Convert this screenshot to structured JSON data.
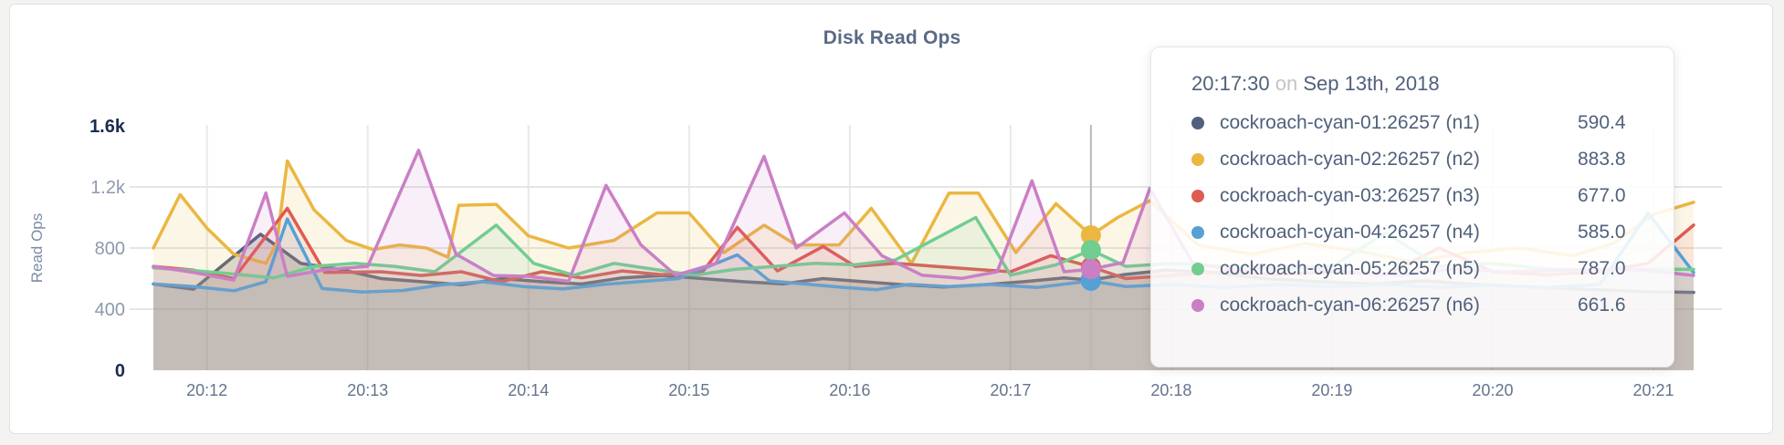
{
  "card": {
    "title": "Disk Read Ops"
  },
  "tooltip": {
    "time": "20:17:30",
    "connector": "on",
    "date": "Sep 13th, 2018",
    "rows": [
      {
        "name": "cockroach-cyan-01:26257 (n1)",
        "value": "590.4",
        "color": "#51607e"
      },
      {
        "name": "cockroach-cyan-02:26257 (n2)",
        "value": "883.8",
        "color": "#ebb742"
      },
      {
        "name": "cockroach-cyan-03:26257 (n3)",
        "value": "677.0",
        "color": "#de5b52"
      },
      {
        "name": "cockroach-cyan-04:26257 (n4)",
        "value": "585.0",
        "color": "#56a0d6"
      },
      {
        "name": "cockroach-cyan-05:26257 (n5)",
        "value": "787.0",
        "color": "#71cd90"
      },
      {
        "name": "cockroach-cyan-06:26257 (n6)",
        "value": "661.6",
        "color": "#ca7fc5"
      }
    ]
  },
  "chart_data": {
    "type": "area",
    "title": "Disk Read Ops",
    "ylabel": "Read Ops",
    "ylim": [
      0,
      1600
    ],
    "grid": true,
    "time_origin": "20:11:40",
    "t_domain_seconds": [
      0,
      575
    ],
    "x_ticks": [
      {
        "label": "20:12",
        "t": 20
      },
      {
        "label": "20:13",
        "t": 80
      },
      {
        "label": "20:14",
        "t": 140
      },
      {
        "label": "20:15",
        "t": 200
      },
      {
        "label": "20:16",
        "t": 260
      },
      {
        "label": "20:17",
        "t": 320
      },
      {
        "label": "20:18",
        "t": 380
      },
      {
        "label": "20:19",
        "t": 440
      },
      {
        "label": "20:20",
        "t": 500
      },
      {
        "label": "20:21",
        "t": 560
      }
    ],
    "y_ticks": [
      {
        "label": "1.6k",
        "value": 1600,
        "emphasis": true,
        "gridline": false
      },
      {
        "label": "1.2k",
        "value": 1200,
        "emphasis": false,
        "gridline": true
      },
      {
        "label": "800",
        "value": 800,
        "emphasis": false,
        "gridline": true
      },
      {
        "label": "400",
        "value": 400,
        "emphasis": false,
        "gridline": true
      },
      {
        "label": "0",
        "value": 0,
        "emphasis": true,
        "gridline": false
      }
    ],
    "hover": {
      "t": 350,
      "time": "20:17:30",
      "values": [
        590.4,
        883.8,
        677.0,
        585.0,
        787.0,
        661.6
      ]
    },
    "series": [
      {
        "name": "cockroach-cyan-01:26257 (n1)",
        "color": "#51607e",
        "fill": "rgba(118,115,106,0.26)",
        "points": [
          [
            0,
            565
          ],
          [
            15,
            530
          ],
          [
            40,
            890
          ],
          [
            55,
            700
          ],
          [
            70,
            660
          ],
          [
            85,
            600
          ],
          [
            100,
            580
          ],
          [
            115,
            560
          ],
          [
            130,
            600
          ],
          [
            145,
            580
          ],
          [
            160,
            565
          ],
          [
            175,
            605
          ],
          [
            190,
            620
          ],
          [
            205,
            600
          ],
          [
            220,
            580
          ],
          [
            235,
            565
          ],
          [
            250,
            600
          ],
          [
            265,
            580
          ],
          [
            280,
            560
          ],
          [
            295,
            545
          ],
          [
            310,
            560
          ],
          [
            325,
            580
          ],
          [
            340,
            605
          ],
          [
            350,
            590.4
          ],
          [
            362,
            625
          ],
          [
            378,
            655
          ],
          [
            395,
            640
          ],
          [
            415,
            600
          ],
          [
            435,
            580
          ],
          [
            455,
            565
          ],
          [
            475,
            585
          ],
          [
            495,
            560
          ],
          [
            515,
            545
          ],
          [
            535,
            530
          ],
          [
            555,
            515
          ],
          [
            575,
            510
          ]
        ]
      },
      {
        "name": "cockroach-cyan-02:26257 (n2)",
        "color": "#ebb742",
        "fill": "rgba(235,183,66,0.13)",
        "points": [
          [
            0,
            800
          ],
          [
            10,
            1150
          ],
          [
            20,
            930
          ],
          [
            30,
            760
          ],
          [
            42,
            700
          ],
          [
            46,
            830
          ],
          [
            50,
            1370
          ],
          [
            60,
            1050
          ],
          [
            72,
            850
          ],
          [
            82,
            790
          ],
          [
            92,
            820
          ],
          [
            102,
            800
          ],
          [
            110,
            740
          ],
          [
            114,
            1080
          ],
          [
            128,
            1086
          ],
          [
            140,
            880
          ],
          [
            155,
            800
          ],
          [
            172,
            850
          ],
          [
            188,
            1030
          ],
          [
            200,
            1030
          ],
          [
            213,
            770
          ],
          [
            228,
            950
          ],
          [
            240,
            820
          ],
          [
            256,
            820
          ],
          [
            268,
            1060
          ],
          [
            283,
            700
          ],
          [
            297,
            1160
          ],
          [
            308,
            1160
          ],
          [
            322,
            770
          ],
          [
            337,
            1090
          ],
          [
            350,
            883.8
          ],
          [
            360,
            1000
          ],
          [
            372,
            1110
          ],
          [
            390,
            820
          ],
          [
            410,
            760
          ],
          [
            430,
            830
          ],
          [
            450,
            780
          ],
          [
            470,
            710
          ],
          [
            490,
            770
          ],
          [
            510,
            800
          ],
          [
            530,
            750
          ],
          [
            545,
            830
          ],
          [
            560,
            1020
          ],
          [
            575,
            1100
          ]
        ]
      },
      {
        "name": "cockroach-cyan-03:26257 (n3)",
        "color": "#de5b52",
        "fill": "rgba(222,91,82,0.10)",
        "points": [
          [
            0,
            680
          ],
          [
            15,
            655
          ],
          [
            30,
            600
          ],
          [
            50,
            1060
          ],
          [
            64,
            640
          ],
          [
            85,
            645
          ],
          [
            100,
            620
          ],
          [
            115,
            645
          ],
          [
            130,
            580
          ],
          [
            145,
            645
          ],
          [
            160,
            605
          ],
          [
            175,
            650
          ],
          [
            190,
            625
          ],
          [
            205,
            645
          ],
          [
            218,
            935
          ],
          [
            233,
            650
          ],
          [
            250,
            810
          ],
          [
            262,
            680
          ],
          [
            277,
            700
          ],
          [
            292,
            680
          ],
          [
            307,
            660
          ],
          [
            320,
            645
          ],
          [
            335,
            750
          ],
          [
            350,
            677
          ],
          [
            363,
            600
          ],
          [
            380,
            620
          ],
          [
            400,
            645
          ],
          [
            420,
            625
          ],
          [
            440,
            645
          ],
          [
            460,
            625
          ],
          [
            480,
            800
          ],
          [
            500,
            645
          ],
          [
            520,
            625
          ],
          [
            540,
            645
          ],
          [
            558,
            700
          ],
          [
            575,
            950
          ]
        ]
      },
      {
        "name": "cockroach-cyan-04:26257 (n4)",
        "color": "#56a0d6",
        "fill": "rgba(86,160,214,0.10)",
        "points": [
          [
            0,
            565
          ],
          [
            15,
            548
          ],
          [
            30,
            520
          ],
          [
            42,
            580
          ],
          [
            50,
            990
          ],
          [
            63,
            535
          ],
          [
            78,
            512
          ],
          [
            93,
            522
          ],
          [
            108,
            560
          ],
          [
            123,
            580
          ],
          [
            138,
            548
          ],
          [
            153,
            532
          ],
          [
            168,
            562
          ],
          [
            183,
            582
          ],
          [
            196,
            600
          ],
          [
            218,
            755
          ],
          [
            230,
            585
          ],
          [
            245,
            562
          ],
          [
            258,
            542
          ],
          [
            270,
            527
          ],
          [
            282,
            562
          ],
          [
            297,
            548
          ],
          [
            312,
            562
          ],
          [
            330,
            542
          ],
          [
            350,
            585
          ],
          [
            363,
            548
          ],
          [
            380,
            562
          ],
          [
            400,
            542
          ],
          [
            420,
            562
          ],
          [
            440,
            548
          ],
          [
            460,
            562
          ],
          [
            480,
            542
          ],
          [
            500,
            558
          ],
          [
            520,
            542
          ],
          [
            540,
            562
          ],
          [
            558,
            1030
          ],
          [
            575,
            640
          ]
        ]
      },
      {
        "name": "cockroach-cyan-05:26257 (n5)",
        "color": "#71cd90",
        "fill": "rgba(113,205,144,0.12)",
        "points": [
          [
            0,
            670
          ],
          [
            15,
            652
          ],
          [
            30,
            630
          ],
          [
            45,
            605
          ],
          [
            60,
            680
          ],
          [
            75,
            700
          ],
          [
            90,
            680
          ],
          [
            105,
            645
          ],
          [
            128,
            950
          ],
          [
            142,
            700
          ],
          [
            157,
            622
          ],
          [
            172,
            700
          ],
          [
            187,
            660
          ],
          [
            202,
            622
          ],
          [
            217,
            660
          ],
          [
            232,
            680
          ],
          [
            247,
            700
          ],
          [
            262,
            690
          ],
          [
            277,
            722
          ],
          [
            307,
            1000
          ],
          [
            320,
            622
          ],
          [
            337,
            690
          ],
          [
            350,
            787
          ],
          [
            363,
            680
          ],
          [
            380,
            700
          ],
          [
            400,
            680
          ],
          [
            420,
            662
          ],
          [
            440,
            680
          ],
          [
            460,
            900
          ],
          [
            480,
            680
          ],
          [
            500,
            700
          ],
          [
            520,
            662
          ],
          [
            540,
            650
          ],
          [
            558,
            662
          ],
          [
            575,
            660
          ]
        ]
      },
      {
        "name": "cockroach-cyan-06:26257 (n6)",
        "color": "#ca7fc5",
        "fill": "rgba(202,127,197,0.12)",
        "points": [
          [
            0,
            680
          ],
          [
            15,
            640
          ],
          [
            30,
            590
          ],
          [
            42,
            1160
          ],
          [
            50,
            615
          ],
          [
            65,
            660
          ],
          [
            80,
            680
          ],
          [
            99,
            1440
          ],
          [
            113,
            760
          ],
          [
            127,
            620
          ],
          [
            140,
            615
          ],
          [
            155,
            582
          ],
          [
            169,
            1210
          ],
          [
            182,
            820
          ],
          [
            195,
            622
          ],
          [
            210,
            700
          ],
          [
            228,
            1400
          ],
          [
            240,
            800
          ],
          [
            258,
            1030
          ],
          [
            272,
            750
          ],
          [
            287,
            622
          ],
          [
            302,
            602
          ],
          [
            315,
            645
          ],
          [
            328,
            1240
          ],
          [
            340,
            645
          ],
          [
            350,
            661.6
          ],
          [
            362,
            705
          ],
          [
            372,
            1190
          ],
          [
            388,
            702
          ],
          [
            405,
            652
          ],
          [
            425,
            682
          ],
          [
            445,
            645
          ],
          [
            465,
            622
          ],
          [
            485,
            662
          ],
          [
            505,
            645
          ],
          [
            525,
            655
          ],
          [
            545,
            662
          ],
          [
            560,
            650
          ],
          [
            575,
            620
          ]
        ]
      }
    ]
  }
}
